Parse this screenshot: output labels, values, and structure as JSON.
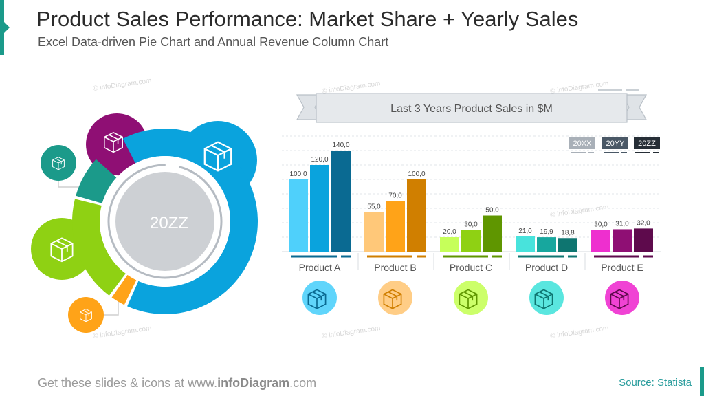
{
  "header": {
    "title": "Product Sales Performance: Market Share + Yearly Sales",
    "subtitle": "Excel Data-driven Pie Chart and Annual Revenue Column Chart"
  },
  "donut": {
    "center_label": "20ZZ"
  },
  "chart_data": {
    "type": "bar",
    "title": "Last 3 Years Product Sales in $M",
    "categories": [
      "Product A",
      "Product B",
      "Product C",
      "Product D",
      "Product E"
    ],
    "series": [
      {
        "name": "20XX",
        "values": [
          100.0,
          55.0,
          20.0,
          21.0,
          30.0
        ]
      },
      {
        "name": "20YY",
        "values": [
          120.0,
          70.0,
          30.0,
          19.9,
          31.0
        ]
      },
      {
        "name": "20ZZ",
        "values": [
          140.0,
          100.0,
          50.0,
          18.8,
          32.0
        ]
      }
    ],
    "value_labels": [
      [
        "100,0",
        "120,0",
        "140,0"
      ],
      [
        "55,0",
        "70,0",
        "100,0"
      ],
      [
        "20,0",
        "30,0",
        "50,0"
      ],
      [
        "21,0",
        "19,9",
        "18,8"
      ],
      [
        "30,0",
        "31,0",
        "32,0"
      ]
    ],
    "ylim": [
      0,
      160
    ],
    "grid": true,
    "legend_position": "top-right",
    "legend_colors": [
      "#a9b0b8",
      "#4a5866",
      "#262e36"
    ],
    "category_colors": [
      [
        "#4fd0fb",
        "#0aa3dd",
        "#0a6a92"
      ],
      [
        "#ffc879",
        "#ffa318",
        "#d07f00"
      ],
      [
        "#c6ff5a",
        "#8fd113",
        "#5f9600"
      ],
      [
        "#48e3dc",
        "#17a79e",
        "#0e7570"
      ],
      [
        "#ee2fcf",
        "#8f0f74",
        "#5e0a4c"
      ]
    ]
  },
  "footer": {
    "text_prefix": "Get these slides & icons at www.",
    "text_brand": "infoDiagram",
    "text_suffix": ".com",
    "source": "Source: Statista"
  },
  "watermark_text": "© infoDiagram.com"
}
